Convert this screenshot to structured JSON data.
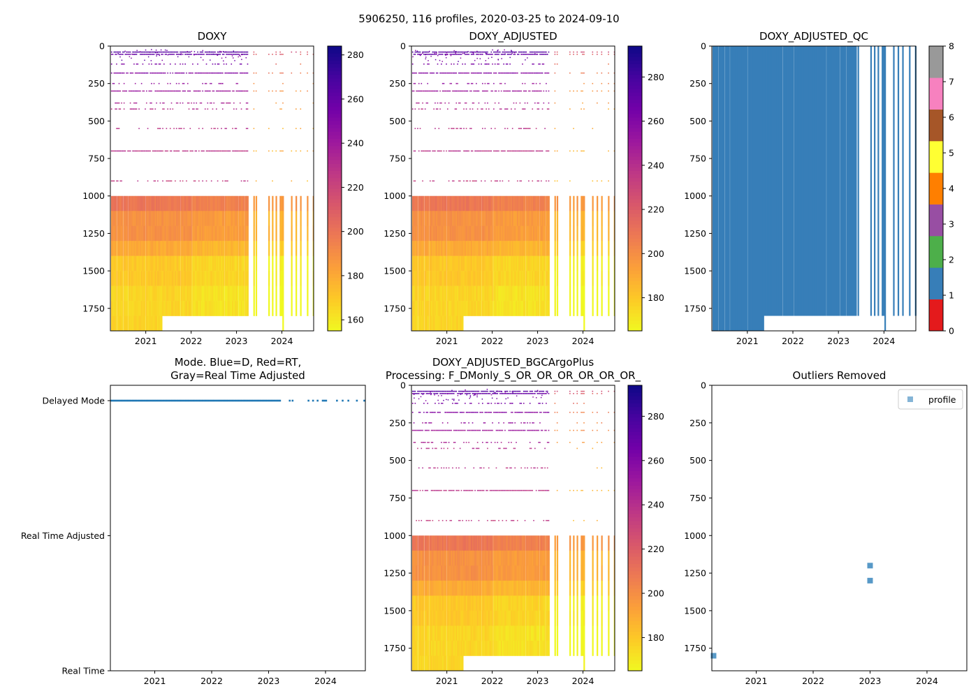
{
  "figure": {
    "suptitle": "5906250, 116 profiles, 2020-03-25 to 2024-09-10"
  },
  "colors": {
    "plasma_r": [
      "#f0f921",
      "#fdca26",
      "#fb9f3a",
      "#ed7953",
      "#d8576b",
      "#bd3786",
      "#9c179e",
      "#7201a8",
      "#46039f",
      "#0d0887"
    ],
    "qc": [
      "#e41a1c",
      "#377eb8",
      "#4daf4a",
      "#984ea3",
      "#ff7f00",
      "#ffff33",
      "#a65628",
      "#f781bf",
      "#999999"
    ],
    "mode_delayed": "#1f77b4",
    "outlier": "#1f77b4"
  },
  "chart_data": [
    {
      "id": "doxy",
      "type": "heatmap",
      "title": "DOXY",
      "variable": "DOXY",
      "x_ticks": [
        "2021",
        "2022",
        "2023",
        "2024"
      ],
      "x_tick_values": [
        2021,
        2022,
        2023,
        2024
      ],
      "xlim": [
        2020.22,
        2024.7
      ],
      "ylim": [
        1900,
        0
      ],
      "y_ticks": [
        "0",
        "250",
        "500",
        "750",
        "1000",
        "1250",
        "1500",
        "1750"
      ],
      "y_tick_values": [
        0,
        250,
        500,
        750,
        1000,
        1250,
        1500,
        1750
      ],
      "colorbar": {
        "ticks": [
          "160",
          "180",
          "200",
          "220",
          "240",
          "260",
          "280"
        ],
        "tick_values": [
          160,
          180,
          200,
          220,
          240,
          260,
          280
        ],
        "range": [
          155,
          284
        ]
      }
    },
    {
      "id": "doxy_adj",
      "type": "heatmap",
      "title": "DOXY_ADJUSTED",
      "variable": "DOXY_ADJUSTED",
      "x_ticks": [
        "2021",
        "2022",
        "2023",
        "2024"
      ],
      "x_tick_values": [
        2021,
        2022,
        2023,
        2024
      ],
      "xlim": [
        2020.22,
        2024.7
      ],
      "ylim": [
        1900,
        0
      ],
      "y_ticks": [
        "0",
        "250",
        "500",
        "750",
        "1000",
        "1250",
        "1500",
        "1750"
      ],
      "y_tick_values": [
        0,
        250,
        500,
        750,
        1000,
        1250,
        1500,
        1750
      ],
      "colorbar": {
        "ticks": [
          "180",
          "200",
          "220",
          "240",
          "260",
          "280"
        ],
        "tick_values": [
          180,
          200,
          220,
          240,
          260,
          280
        ],
        "range": [
          165,
          294
        ]
      }
    },
    {
      "id": "doxy_qc",
      "type": "heatmap",
      "title": "DOXY_ADJUSTED_QC",
      "variable": "DOXY_ADJUSTED_QC",
      "x_ticks": [
        "2021",
        "2022",
        "2023",
        "2024"
      ],
      "x_tick_values": [
        2021,
        2022,
        2023,
        2024
      ],
      "xlim": [
        2020.22,
        2024.7
      ],
      "ylim": [
        1900,
        0
      ],
      "y_ticks": [
        "0",
        "250",
        "500",
        "750",
        "1000",
        "1250",
        "1500",
        "1750"
      ],
      "y_tick_values": [
        0,
        250,
        500,
        750,
        1000,
        1250,
        1500,
        1750
      ],
      "qc_value": 1,
      "colorbar": {
        "ticks": [
          "0",
          "1",
          "2",
          "3",
          "4",
          "5",
          "6",
          "7",
          "8"
        ],
        "tick_values": [
          0,
          1,
          2,
          3,
          4,
          5,
          6,
          7,
          8
        ],
        "range": [
          0,
          8
        ]
      }
    },
    {
      "id": "mode",
      "type": "scatter",
      "title_lines": [
        "Mode. Blue=D, Red=RT,",
        "Gray=Real Time Adjusted"
      ],
      "x_ticks": [
        "2021",
        "2022",
        "2023",
        "2024"
      ],
      "x_tick_values": [
        2021,
        2022,
        2023,
        2024
      ],
      "xlim": [
        2020.22,
        2024.7
      ],
      "y_categories": [
        "Delayed Mode",
        "Real Time Adjusted",
        "Real Time"
      ],
      "series": [
        {
          "name": "D",
          "category": "Delayed Mode",
          "x_range": [
            2020.23,
            2023.2
          ]
        },
        {
          "name": "D",
          "category": "Delayed Mode",
          "x": [
            2023.37,
            2023.42,
            2023.7,
            2023.78,
            2023.86,
            2023.95,
            2023.98,
            2024.01,
            2024.2,
            2024.3,
            2024.4,
            2024.55,
            2024.68
          ]
        }
      ]
    },
    {
      "id": "bgc",
      "type": "heatmap",
      "title_lines": [
        "DOXY_ADJUSTED_BGCArgoPlus",
        "Processing: F_DMonly_S_OR_OR_OR_OR_OR_OR_"
      ],
      "variable": "DOXY_ADJUSTED_BGCArgoPlus",
      "x_ticks": [
        "2021",
        "2022",
        "2023",
        "2024"
      ],
      "x_tick_values": [
        2021,
        2022,
        2023,
        2024
      ],
      "xlim": [
        2020.22,
        2024.7
      ],
      "ylim": [
        1900,
        0
      ],
      "y_ticks": [
        "0",
        "250",
        "500",
        "750",
        "1000",
        "1250",
        "1500",
        "1750"
      ],
      "y_tick_values": [
        0,
        250,
        500,
        750,
        1000,
        1250,
        1500,
        1750
      ],
      "colorbar": {
        "ticks": [
          "180",
          "200",
          "220",
          "240",
          "260",
          "280"
        ],
        "tick_values": [
          180,
          200,
          220,
          240,
          260,
          280
        ],
        "range": [
          165,
          294
        ]
      }
    },
    {
      "id": "outliers",
      "type": "scatter",
      "title": "Outliers Removed",
      "x_ticks": [
        "2021",
        "2022",
        "2023",
        "2024"
      ],
      "x_tick_values": [
        2021,
        2022,
        2023,
        2024
      ],
      "xlim": [
        2020.22,
        2024.7
      ],
      "ylim": [
        1900,
        0
      ],
      "y_ticks": [
        "0",
        "250",
        "500",
        "750",
        "1000",
        "1250",
        "1500",
        "1750"
      ],
      "y_tick_values": [
        0,
        250,
        500,
        750,
        1000,
        1250,
        1500,
        1750
      ],
      "legend": {
        "label": "profile",
        "loc": "upper right"
      },
      "points": [
        {
          "x": 2020.25,
          "y": 1800
        },
        {
          "x": 2023.0,
          "y": 1200
        },
        {
          "x": 2023.0,
          "y": 1300
        }
      ]
    }
  ]
}
